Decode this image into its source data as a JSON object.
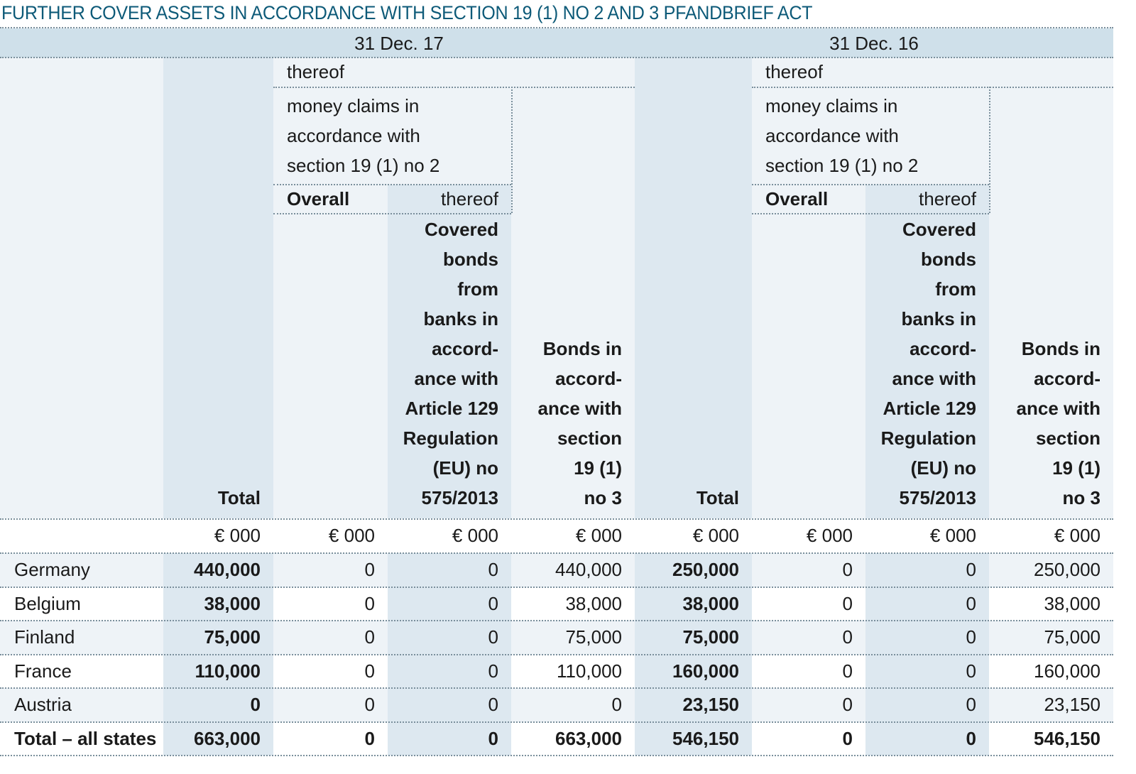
{
  "title": "FURTHER COVER ASSETS IN ACCORDANCE WITH SECTION 19 (1) NO 2 AND 3 PFANDBRIEF ACT",
  "periods": [
    {
      "date": "31 Dec. 17",
      "thereof": "thereof",
      "money_claims": [
        "money claims in",
        "accordance with",
        "section 19 (1) no 2"
      ],
      "overall": "Overall",
      "thereof_sub": "thereof",
      "total": "Total",
      "covered_bonds": [
        "Covered",
        "bonds",
        "from",
        "banks in",
        "accord-",
        "ance with",
        "Article 129",
        "Regulation",
        "(EU) no",
        "575/2013"
      ],
      "bonds_no3": [
        "Bonds in",
        "accord-",
        "ance with",
        "section",
        "19 (1)",
        "no 3"
      ]
    },
    {
      "date": "31 Dec. 16",
      "thereof": "thereof",
      "money_claims": [
        "money claims in",
        "accordance with",
        "section 19 (1) no 2"
      ],
      "overall": "Overall",
      "thereof_sub": "thereof",
      "total": "Total",
      "covered_bonds": [
        "Covered",
        "bonds",
        "from",
        "banks in",
        "accord-",
        "ance with",
        "Article 129",
        "Regulation",
        "(EU) no",
        "575/2013"
      ],
      "bonds_no3": [
        "Bonds in",
        "accord-",
        "ance with",
        "section",
        "19 (1)",
        "no 3"
      ]
    }
  ],
  "units": [
    "€ 000",
    "€ 000",
    "€ 000",
    "€ 000",
    "€ 000",
    "€ 000",
    "€ 000",
    "€ 000"
  ],
  "rows": [
    {
      "label": "Germany",
      "values": [
        "440,000",
        "0",
        "0",
        "440,000",
        "250,000",
        "0",
        "0",
        "250,000"
      ]
    },
    {
      "label": "Belgium",
      "values": [
        "38,000",
        "0",
        "0",
        "38,000",
        "38,000",
        "0",
        "0",
        "38,000"
      ]
    },
    {
      "label": "Finland",
      "values": [
        "75,000",
        "0",
        "0",
        "75,000",
        "75,000",
        "0",
        "0",
        "75,000"
      ]
    },
    {
      "label": "France",
      "values": [
        "110,000",
        "0",
        "0",
        "110,000",
        "160,000",
        "0",
        "0",
        "160,000"
      ]
    },
    {
      "label": "Austria",
      "values": [
        "0",
        "0",
        "0",
        "0",
        "23,150",
        "0",
        "0",
        "23,150"
      ]
    }
  ],
  "total_row": {
    "label": "Total – all states",
    "values": [
      "663,000",
      "0",
      "0",
      "663,000",
      "546,150",
      "0",
      "0",
      "546,150"
    ]
  },
  "colors": {
    "title": "#0d5a78",
    "date_band": "#cfe0ea",
    "shaded_col": "#dde8f0",
    "light_bg": "#eef3f7"
  }
}
